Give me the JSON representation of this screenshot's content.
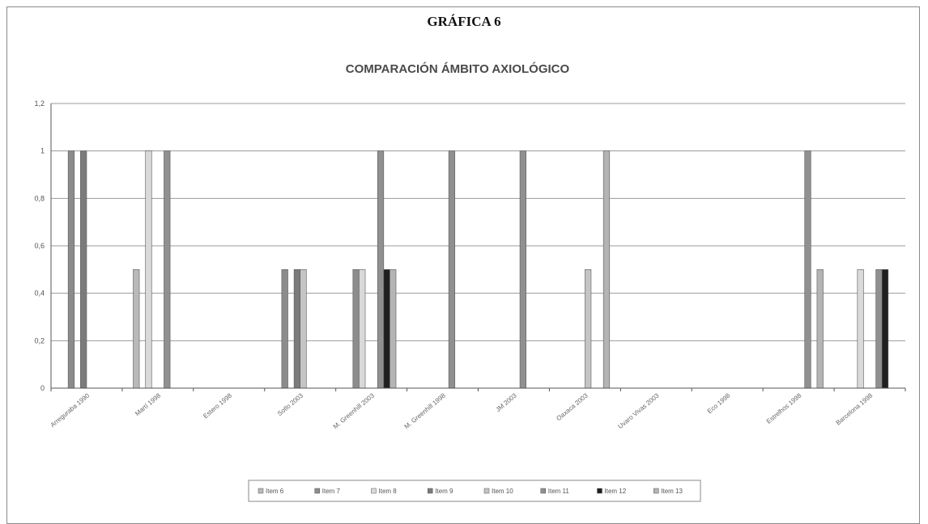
{
  "heading": "GRÁFICA 6",
  "chart_data": {
    "type": "bar",
    "title": "COMPARACIÓN ÁMBITO AXIOLÓGICO",
    "xlabel": "",
    "ylabel": "",
    "ylim": [
      0,
      1.2
    ],
    "yticks": [
      "0",
      "0,2",
      "0,4",
      "0,6",
      "0,8",
      "1",
      "1,2"
    ],
    "grid": true,
    "legend_position": "bottom",
    "categories": [
      "Arreguraba 1990",
      "Martí 1998",
      "Estero 1998",
      "Sotlo 2003",
      "M. Greenhill 2003",
      "M. Greenhill 1998",
      "JM 2003",
      "Oaxaca 2003",
      "Uvaro Vivas 2003",
      "Eco 1998",
      "Estrelhos 1998",
      "Barcelona 1998"
    ],
    "series": [
      {
        "name": "Item 6",
        "color": "#b9b9b9",
        "values": [
          0,
          0.5,
          0,
          0,
          0,
          0,
          0,
          0,
          0,
          0,
          0,
          0
        ]
      },
      {
        "name": "Item 7",
        "color": "#8c8c8c",
        "values": [
          1,
          0,
          0,
          0.5,
          0.5,
          0,
          0,
          0,
          0,
          0,
          0,
          0
        ]
      },
      {
        "name": "Item 8",
        "color": "#d9d9d9",
        "values": [
          0,
          1,
          0,
          0,
          0.5,
          0,
          0,
          0,
          0,
          0,
          0,
          0.5
        ]
      },
      {
        "name": "Item 9",
        "color": "#7b7b7b",
        "values": [
          1,
          0,
          0,
          0.5,
          0,
          0,
          0,
          0,
          0,
          0,
          0,
          0
        ]
      },
      {
        "name": "Item 10",
        "color": "#c4c4c4",
        "values": [
          0,
          0,
          0,
          0.5,
          0,
          0,
          0,
          0.5,
          0,
          0,
          0,
          0
        ]
      },
      {
        "name": "Item 11",
        "color": "#909090",
        "values": [
          0,
          1,
          0,
          0,
          1,
          1,
          1,
          0,
          0,
          0,
          1,
          0.5
        ]
      },
      {
        "name": "Item 12",
        "color": "#1f1f1f",
        "values": [
          0,
          0,
          0,
          0,
          0.5,
          0,
          0,
          0,
          0,
          0,
          0,
          0.5
        ]
      },
      {
        "name": "Item 13",
        "color": "#b4b4b4",
        "values": [
          0,
          0,
          0,
          0,
          0.5,
          0,
          0,
          1,
          0,
          0,
          0.5,
          0
        ]
      }
    ]
  }
}
